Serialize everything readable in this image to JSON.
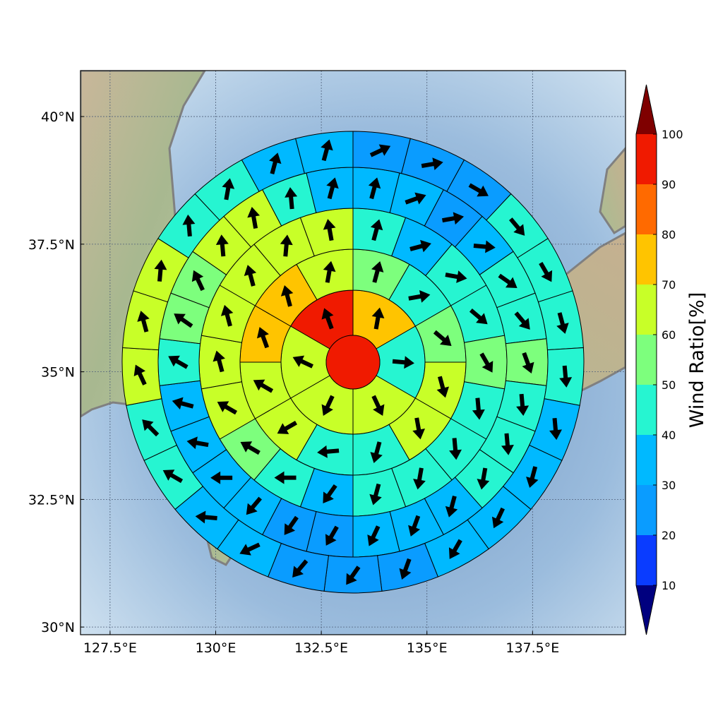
{
  "chart_data": {
    "type": "heatmap",
    "subtype": "polar-sector wind ratio map with direction arrows",
    "map": {
      "lon_range": [
        126.8,
        139.7
      ],
      "lat_range": [
        29.85,
        40.9
      ],
      "x_ticks": [
        "127.5°E",
        "130°E",
        "132.5°E",
        "135°E",
        "137.5°E"
      ],
      "x_tick_values": [
        127.5,
        130,
        132.5,
        135,
        137.5
      ],
      "y_ticks": [
        "30°N",
        "32.5°N",
        "35°N",
        "37.5°N",
        "40°N"
      ],
      "y_tick_values": [
        30,
        32.5,
        35,
        37.5,
        40
      ],
      "grid": true
    },
    "rings_desc": "Ring 0 is the central disk; ring 1..5 move outward. Each outer ring is split into sectors of equal angle starting at north, clockwise. Values are wind ratio in percent, arrows are wind direction (degrees the arrow points to, clockwise from north).",
    "center": {
      "value": 95
    },
    "rings": [
      {
        "ring": 1,
        "values": [
          75,
          45,
          65,
          65,
          65,
          95
        ],
        "arrow_dir": [
          10,
          95,
          155,
          205,
          295,
          340
        ]
      },
      {
        "ring": 2,
        "values": [
          55,
          45,
          55,
          65,
          65,
          45,
          45,
          65,
          65,
          75,
          75,
          65
        ],
        "arrow_dir": [
          15,
          80,
          130,
          165,
          170,
          195,
          265,
          240,
          300,
          340,
          345,
          10
        ]
      },
      {
        "ring": 3,
        "values": [
          45,
          35,
          45,
          45,
          55,
          45,
          45,
          45,
          45,
          35,
          45,
          55,
          65,
          65,
          65,
          65,
          65,
          65
        ],
        "arrow_dir": [
          15,
          75,
          100,
          130,
          150,
          175,
          175,
          190,
          195,
          215,
          270,
          300,
          300,
          345,
          345,
          345,
          5,
          350
        ]
      },
      {
        "ring": 4,
        "values": [
          35,
          35,
          25,
          35,
          45,
          45,
          55,
          45,
          45,
          45,
          35,
          35,
          35,
          25,
          25,
          35,
          35,
          35,
          35,
          45,
          55,
          55,
          65,
          65,
          45,
          35
        ],
        "arrow_dir": [
          15,
          70,
          80,
          95,
          125,
          140,
          160,
          175,
          175,
          190,
          195,
          200,
          205,
          210,
          215,
          220,
          270,
          280,
          285,
          300,
          305,
          335,
          355,
          350,
          355,
          15
        ]
      },
      {
        "ring": 5,
        "values": [
          25,
          25,
          25,
          45,
          45,
          45,
          45,
          35,
          35,
          35,
          35,
          25,
          25,
          25,
          35,
          35,
          45,
          45,
          65,
          65,
          65,
          45,
          45,
          35,
          35
        ],
        "arrow_dir": [
          65,
          80,
          120,
          140,
          150,
          165,
          175,
          175,
          195,
          205,
          210,
          200,
          215,
          220,
          245,
          275,
          300,
          315,
          335,
          345,
          5,
          355,
          10,
          15,
          15
        ]
      }
    ],
    "colorbar": {
      "label": "Wind Ratio[%]",
      "ticks": [
        "10",
        "20",
        "30",
        "40",
        "50",
        "60",
        "70",
        "80",
        "90",
        "100"
      ],
      "levels": [
        10,
        20,
        30,
        40,
        50,
        60,
        70,
        80,
        90,
        100
      ],
      "colors": [
        "#0000cc",
        "#0a3cff",
        "#0a9cff",
        "#00b9ff",
        "#26f5d1",
        "#7dff7d",
        "#c8ff28",
        "#ffc400",
        "#ff6a00",
        "#f01a00"
      ],
      "under_color": "#00007f",
      "over_color": "#7f0000"
    }
  }
}
